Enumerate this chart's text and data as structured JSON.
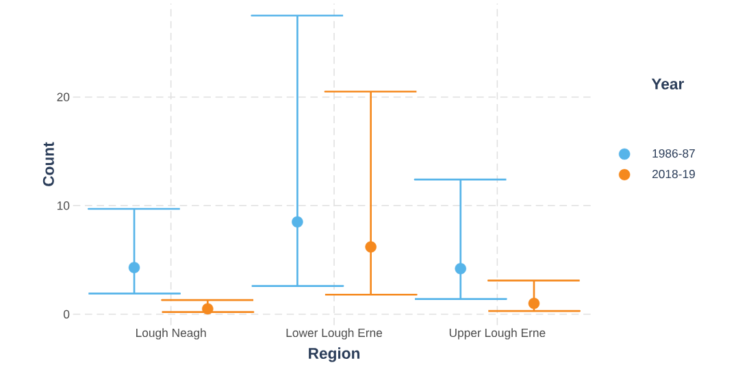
{
  "chart_data": {
    "type": "scatter",
    "xlabel": "Region",
    "ylabel": "Count",
    "legend_title": "Year",
    "categories": [
      "Lough Neagh",
      "Lower Lough Erne",
      "Upper Lough Erne"
    ],
    "series": [
      {
        "name": "1986-87",
        "color": "#56b4e9",
        "values": [
          4.3,
          8.5,
          4.2
        ],
        "errors": [
          [
            1.9,
            9.7
          ],
          [
            2.6,
            27.5
          ],
          [
            1.4,
            12.4
          ]
        ]
      },
      {
        "name": "2018-19",
        "color": "#f5891f",
        "values": [
          0.5,
          6.2,
          1.0
        ],
        "errors": [
          [
            0.2,
            1.3
          ],
          [
            1.8,
            20.5
          ],
          [
            0.3,
            3.1
          ]
        ]
      }
    ],
    "ylim": [
      -1,
      28.6
    ],
    "yticks": [
      0,
      10,
      20
    ],
    "grid": true,
    "legend": "right",
    "marker": "circle"
  }
}
